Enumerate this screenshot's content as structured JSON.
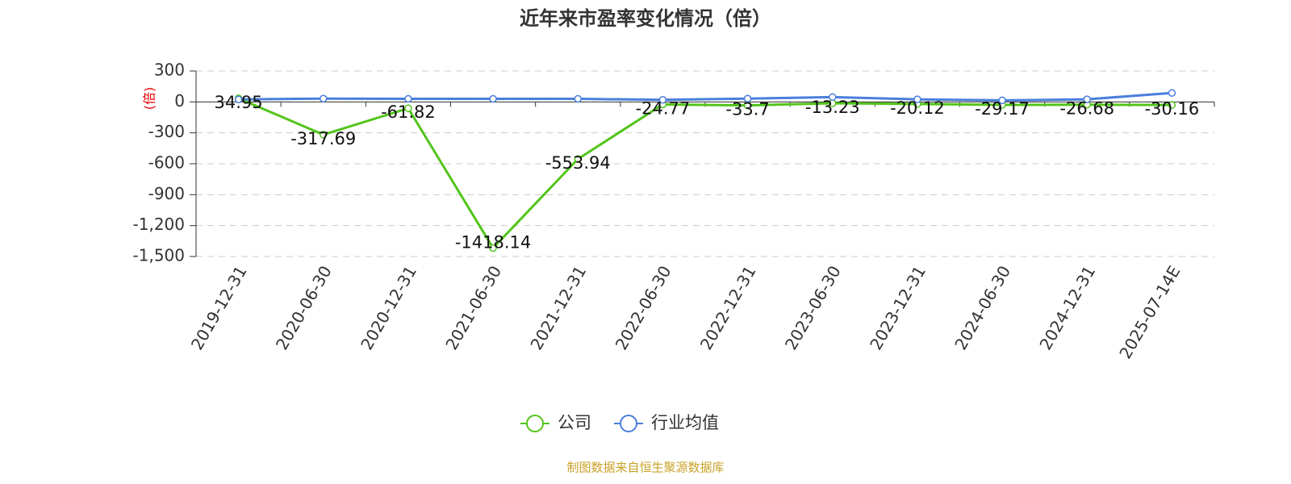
{
  "chart_data": {
    "type": "line",
    "title": "近年来市盈率变化情况（倍）",
    "y_label": "(倍)",
    "source": "制图数据来自恒生聚源数据库",
    "categories": [
      "2019-12-31",
      "2020-06-30",
      "2020-12-31",
      "2021-06-30",
      "2021-12-31",
      "2022-06-30",
      "2022-12-31",
      "2023-06-30",
      "2023-12-31",
      "2024-06-30",
      "2024-12-31",
      "2025-07-14E"
    ],
    "series": [
      {
        "name": "公司",
        "color": "#52c41a",
        "values": [
          34.95,
          -317.69,
          -61.82,
          -1418.14,
          -553.94,
          -24.77,
          -33.7,
          -13.23,
          -20.12,
          -29.17,
          -26.68,
          -30.16
        ]
      },
      {
        "name": "行业均值",
        "color": "#4a7fdc",
        "values": [
          24,
          32,
          30,
          30,
          30,
          20,
          32,
          47,
          25,
          15,
          25,
          87
        ]
      }
    ],
    "ylim": [
      -1500,
      300
    ],
    "yticks": [
      {
        "value": -1500,
        "label": "-1,500"
      },
      {
        "value": -1200,
        "label": "-1,200"
      },
      -900,
      -600,
      -300,
      0,
      300
    ],
    "grid": true
  }
}
